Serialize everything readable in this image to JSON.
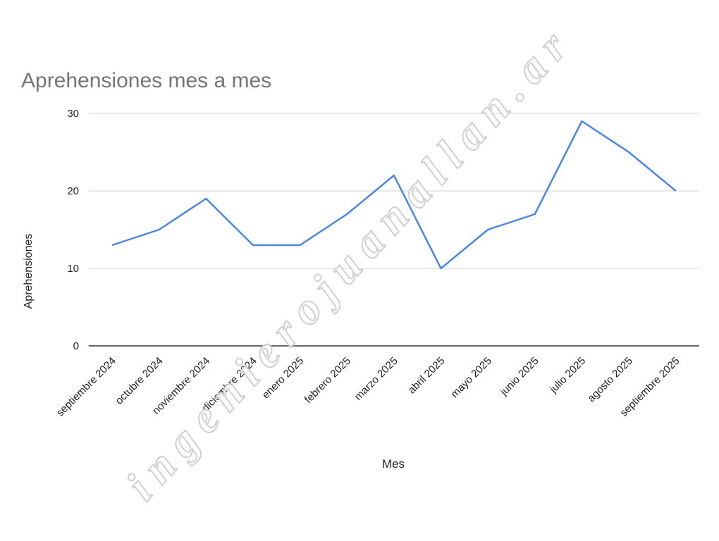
{
  "chart_data": {
    "type": "line",
    "title": "Aprehensiones mes a mes",
    "x_label": "Mes",
    "y_label": "Aprehensiones",
    "categories": [
      "septiembre 2024",
      "octubre 2024",
      "noviembre 2024",
      "diciembre 2024",
      "enero 2025",
      "febrero 2025",
      "marzo 2025",
      "abril 2025",
      "mayo 2025",
      "junio 2025",
      "julio 2025",
      "agosto 2025",
      "septiembre 2025"
    ],
    "series": [
      {
        "name": "Aprehensiones",
        "color": "#4a86e8",
        "values": [
          13,
          15,
          19,
          13,
          13,
          17,
          22,
          10,
          15,
          17,
          29,
          25,
          20
        ]
      }
    ],
    "ylim": [
      0,
      30
    ],
    "yticks": [
      0,
      10,
      20,
      30
    ],
    "grid": true
  },
  "watermark": "ingenierojuanallan.ar"
}
